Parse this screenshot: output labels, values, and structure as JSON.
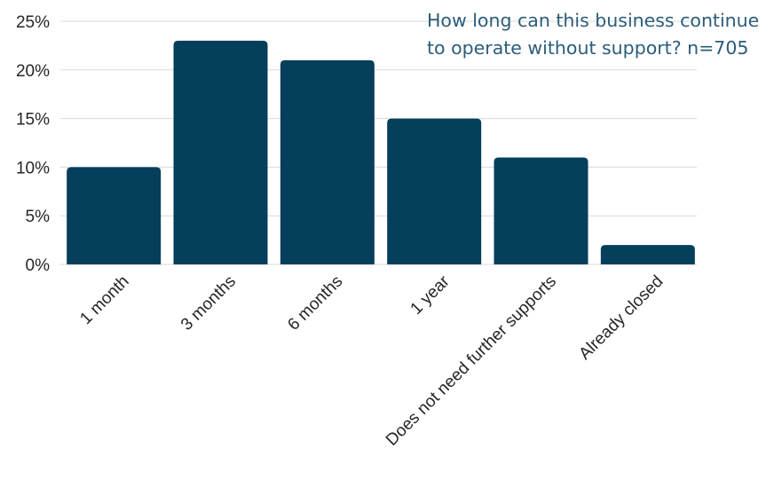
{
  "colors": {
    "bar": "#053f5c",
    "title": "#2b5d7a",
    "grid": "#d9d9d9",
    "text": "#262626"
  },
  "chart_data": {
    "type": "bar",
    "title_lines": [
      "How long can this business continue",
      "to operate without support? n=705"
    ],
    "categories": [
      "1 month",
      "3 months",
      "6 months",
      "1 year",
      "Does not need further supports",
      "Already closed"
    ],
    "values": [
      10,
      23,
      21,
      15,
      11,
      2
    ],
    "unit": "%",
    "ylim": [
      0,
      25
    ],
    "yticks": [
      0,
      5,
      10,
      15,
      20,
      25
    ],
    "ytick_labels": [
      "0%",
      "5%",
      "10%",
      "15%",
      "20%",
      "25%"
    ],
    "grid": true,
    "legend": "none"
  }
}
